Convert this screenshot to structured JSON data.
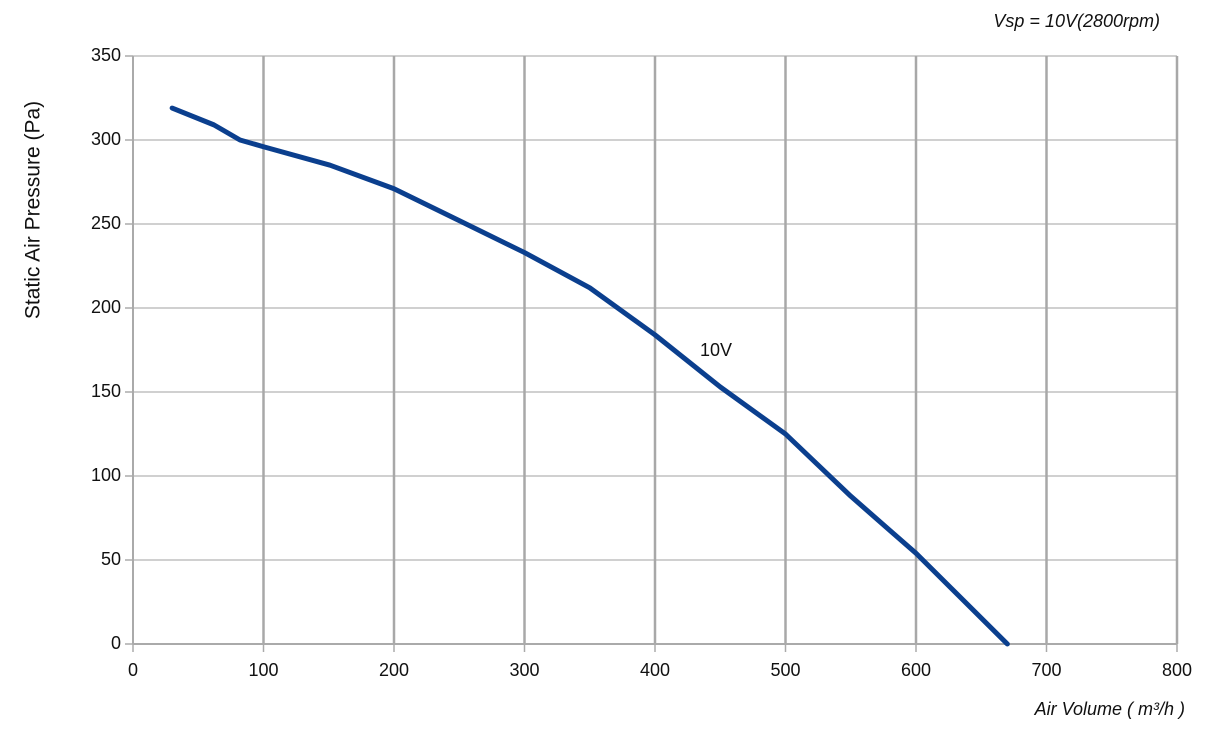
{
  "chart_data": {
    "type": "line",
    "subtitle": "Vsp = 10V(2800rpm)",
    "x_label": "Air Volume ( m³/h )",
    "y_label": "Static Air Pressure  (Pa)",
    "x": [
      30,
      62,
      82,
      100,
      151,
      200,
      250,
      300,
      350,
      400,
      450,
      500,
      550,
      600,
      670
    ],
    "series": [
      {
        "name": "10V",
        "color": "#0b3f8e",
        "values": [
          319,
          309,
          300,
          296,
          285,
          271,
          252,
          233,
          212,
          184,
          153,
          125,
          88,
          54,
          0
        ]
      }
    ],
    "xlim": [
      0,
      800
    ],
    "xticks": [
      0,
      100,
      200,
      300,
      400,
      500,
      600,
      700,
      800
    ],
    "ylim": [
      0,
      350
    ],
    "yticks": [
      0,
      50,
      100,
      150,
      200,
      250,
      300,
      350
    ],
    "grid": true
  }
}
